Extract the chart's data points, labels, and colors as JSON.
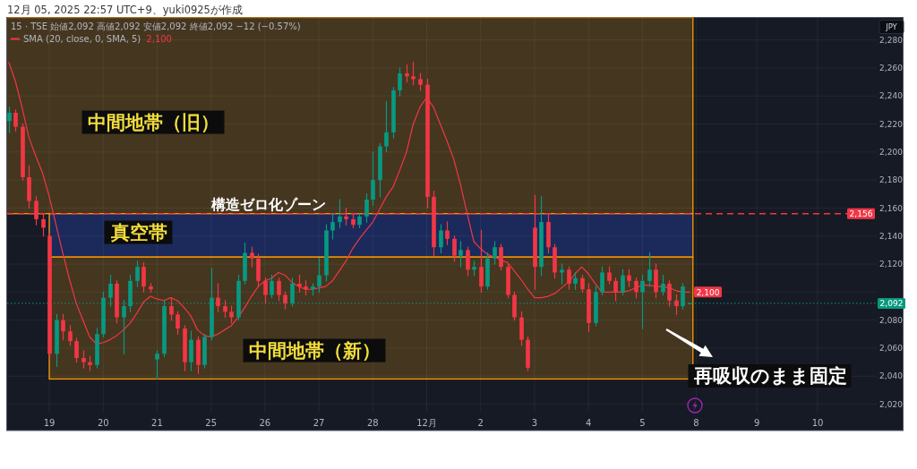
{
  "chart_data": {
    "type": "candlestick",
    "title": "15 · TSE 始値2,092 高値2,092 安値2,092 終値2,092 −12 (−0.57%)",
    "ylabel": "JPY",
    "annotations": [
      "12月 05, 2025 22:57 UTC+9、yuki0925が作成",
      "再吸収のまま固定",
      {
        "text": "構造ゼロ化ゾーン",
        "y": 2156
      }
    ],
    "categories": [
      null,
      null,
      null,
      null,
      null,
      null,
      "19",
      null,
      null,
      null,
      null,
      null,
      null,
      null,
      "20",
      null,
      null,
      null,
      null,
      null,
      null,
      null,
      "21",
      null,
      null,
      null,
      null,
      null,
      null,
      null,
      "25",
      null,
      null,
      null,
      null,
      null,
      null,
      null,
      "26",
      null,
      null,
      null,
      null,
      null,
      null,
      null,
      "27",
      null,
      null,
      null,
      null,
      null,
      null,
      null,
      "28",
      null,
      null,
      null,
      null,
      null,
      null,
      null,
      "12月",
      null,
      null,
      null,
      null,
      null,
      null,
      null,
      "2",
      null,
      null,
      null,
      null,
      null,
      null,
      null,
      "3",
      null,
      null,
      null,
      null,
      null,
      null,
      null,
      "4",
      null,
      null,
      null,
      null,
      null,
      null,
      null,
      "5",
      null,
      null,
      null,
      null,
      null,
      null,
      null,
      "8",
      null,
      null,
      null,
      null,
      null,
      null,
      null,
      null,
      "9",
      null,
      null,
      null,
      null,
      null,
      null,
      null,
      null,
      "10",
      null,
      null,
      null,
      null,
      null,
      null,
      null,
      null
    ],
    "ohlc": [
      [
        2222,
        2232,
        2214,
        2228
      ],
      [
        2228,
        2230,
        2215,
        2218
      ],
      [
        2218,
        2220,
        2180,
        2182
      ],
      [
        2182,
        2190,
        2160,
        2165
      ],
      [
        2165,
        2168,
        2148,
        2152
      ],
      [
        2152,
        2156,
        2140,
        2146
      ],
      [
        2140,
        2142,
        2052,
        2056
      ],
      [
        2056,
        2084,
        2047,
        2080
      ],
      [
        2080,
        2084,
        2066,
        2072
      ],
      [
        2072,
        2076,
        2062,
        2065
      ],
      [
        2065,
        2067,
        2050,
        2053
      ],
      [
        2053,
        2058,
        2046,
        2050
      ],
      [
        2050,
        2054,
        2044,
        2048
      ],
      [
        2048,
        2074,
        2046,
        2070
      ],
      [
        2070,
        2100,
        2068,
        2096
      ],
      [
        2096,
        2112,
        2090,
        2106
      ],
      [
        2106,
        2108,
        2078,
        2082
      ],
      [
        2082,
        2094,
        2056,
        2090
      ],
      [
        2090,
        2112,
        2086,
        2108
      ],
      [
        2108,
        2122,
        2104,
        2118
      ],
      [
        2118,
        2121,
        2100,
        2104
      ],
      [
        2104,
        2106,
        2100,
        2102
      ],
      [
        2052,
        2058,
        2038,
        2056
      ],
      [
        2056,
        2094,
        2054,
        2090
      ],
      [
        2090,
        2096,
        2080,
        2084
      ],
      [
        2084,
        2086,
        2070,
        2074
      ],
      [
        2074,
        2076,
        2044,
        2050
      ],
      [
        2050,
        2072,
        2044,
        2066
      ],
      [
        2066,
        2068,
        2042,
        2048
      ],
      [
        2048,
        2070,
        2046,
        2068
      ],
      [
        2068,
        2117,
        2066,
        2096
      ],
      [
        2096,
        2106,
        2086,
        2090
      ],
      [
        2090,
        2094,
        2082,
        2086
      ],
      [
        2086,
        2090,
        2078,
        2082
      ],
      [
        2082,
        2112,
        2080,
        2108
      ],
      [
        2108,
        2135,
        2106,
        2128
      ],
      [
        2128,
        2132,
        2118,
        2124
      ],
      [
        2124,
        2127,
        2104,
        2108
      ],
      [
        2108,
        2110,
        2092,
        2098
      ],
      [
        2098,
        2112,
        2096,
        2108
      ],
      [
        2108,
        2110,
        2094,
        2098
      ],
      [
        2098,
        2100,
        2088,
        2092
      ],
      [
        2092,
        2110,
        2090,
        2106
      ],
      [
        2106,
        2112,
        2100,
        2104
      ],
      [
        2104,
        2108,
        2098,
        2102
      ],
      [
        2102,
        2106,
        2098,
        2104
      ],
      [
        2104,
        2124,
        2100,
        2112
      ],
      [
        2112,
        2148,
        2108,
        2144
      ],
      [
        2144,
        2156,
        2138,
        2150
      ],
      [
        2150,
        2166,
        2146,
        2154
      ],
      [
        2154,
        2160,
        2148,
        2152
      ],
      [
        2152,
        2156,
        2146,
        2148
      ],
      [
        2148,
        2156,
        2146,
        2154
      ],
      [
        2154,
        2170,
        2150,
        2166
      ],
      [
        2166,
        2200,
        2162,
        2180
      ],
      [
        2180,
        2206,
        2168,
        2204
      ],
      [
        2204,
        2236,
        2200,
        2214
      ],
      [
        2214,
        2246,
        2210,
        2244
      ],
      [
        2244,
        2260,
        2240,
        2256
      ],
      [
        2256,
        2262,
        2250,
        2254
      ],
      [
        2254,
        2264,
        2248,
        2252
      ],
      [
        2252,
        2256,
        2244,
        2248
      ],
      [
        2248,
        2252,
        2160,
        2168
      ],
      [
        2168,
        2172,
        2126,
        2132
      ],
      [
        2132,
        2148,
        2128,
        2144
      ],
      [
        2144,
        2150,
        2134,
        2138
      ],
      [
        2138,
        2140,
        2122,
        2126
      ],
      [
        2126,
        2136,
        2118,
        2130
      ],
      [
        2130,
        2132,
        2112,
        2116
      ],
      [
        2116,
        2122,
        2112,
        2118
      ],
      [
        2118,
        2144,
        2100,
        2104
      ],
      [
        2104,
        2128,
        2102,
        2124
      ],
      [
        2124,
        2136,
        2120,
        2132
      ],
      [
        2132,
        2134,
        2116,
        2118
      ],
      [
        2118,
        2120,
        2096,
        2098
      ],
      [
        2098,
        2100,
        2080,
        2082
      ],
      [
        2082,
        2086,
        2062,
        2066
      ],
      [
        2066,
        2068,
        2044,
        2046
      ],
      [
        2146,
        2169,
        2102,
        2118
      ],
      [
        2118,
        2168,
        2112,
        2150
      ],
      [
        2150,
        2156,
        2128,
        2132
      ],
      [
        2132,
        2134,
        2110,
        2114
      ],
      [
        2114,
        2120,
        2106,
        2116
      ],
      [
        2116,
        2118,
        2102,
        2106
      ],
      [
        2106,
        2114,
        2102,
        2110
      ],
      [
        2110,
        2112,
        2100,
        2102
      ],
      [
        2102,
        2106,
        2072,
        2078
      ],
      [
        2078,
        2104,
        2076,
        2100
      ],
      [
        2100,
        2118,
        2098,
        2114
      ],
      [
        2114,
        2118,
        2106,
        2108
      ],
      [
        2108,
        2110,
        2094,
        2100
      ],
      [
        2100,
        2116,
        2098,
        2112
      ],
      [
        2112,
        2116,
        2104,
        2108
      ],
      [
        2108,
        2110,
        2096,
        2100
      ],
      [
        2100,
        2112,
        2074,
        2108
      ],
      [
        2108,
        2128,
        2104,
        2116
      ],
      [
        2116,
        2120,
        2096,
        2100
      ],
      [
        2100,
        2112,
        2098,
        2106
      ],
      [
        2106,
        2108,
        2090,
        2094
      ],
      [
        2094,
        2098,
        2084,
        2090
      ],
      [
        2090,
        2106,
        2088,
        2104
      ],
      [
        2092,
        2092,
        2092,
        2092
      ],
      null,
      null,
      null,
      null,
      null,
      null,
      null,
      null,
      null,
      null,
      null,
      null,
      null,
      null,
      null,
      null,
      null,
      null,
      null,
      null,
      null,
      null,
      null,
      null,
      null,
      null,
      null
    ],
    "series": [
      {
        "name": "SMA (20, close, 0, SMA, 5)",
        "type": "line",
        "color": "#f23645",
        "values": [
          2264,
          2250,
          2231,
          2210,
          2197,
          2185,
          2168,
          2148,
          2128,
          2109,
          2092,
          2080,
          2068,
          2063,
          2064,
          2066,
          2069,
          2073,
          2078,
          2085,
          2093,
          2097,
          2095,
          2094,
          2096,
          2094,
          2089,
          2083,
          2073,
          2069,
          2068,
          2070,
          2073,
          2076,
          2082,
          2089,
          2097,
          2104,
          2108,
          2110,
          2114,
          2112,
          2107,
          2104,
          2102,
          2102,
          2103,
          2104,
          2108,
          2115,
          2122,
          2131,
          2138,
          2144,
          2150,
          2159,
          2168,
          2175,
          2187,
          2200,
          2220,
          2232,
          2239,
          2232,
          2220,
          2208,
          2195,
          2177,
          2156,
          2136,
          2131,
          2127,
          2125,
          2123,
          2121,
          2115,
          2109,
          2102,
          2096,
          2096,
          2097,
          2099,
          2103,
          2107,
          2113,
          2118,
          2113,
          2106,
          2100,
          2100,
          2100,
          2100,
          2101,
          2103,
          2105,
          2105,
          2104,
          2104,
          2103,
          2101,
          2100,
          2100,
          null,
          null,
          null,
          null,
          null,
          null,
          null,
          null,
          null,
          null,
          null,
          null,
          null,
          null,
          null,
          null,
          null,
          null,
          null,
          null,
          null,
          null,
          null,
          null,
          null,
          null,
          null
        ],
        "value_labels": [
          null,
          null,
          null,
          null,
          null,
          null,
          null,
          null,
          null,
          null,
          null,
          null,
          null,
          null,
          null,
          null,
          null,
          null,
          null,
          null,
          null,
          null,
          null,
          null,
          null,
          null,
          null,
          null,
          null,
          null,
          null,
          null,
          null,
          null,
          null,
          null,
          null,
          null,
          null,
          null,
          null,
          null,
          null,
          null,
          null,
          null,
          null,
          null,
          null,
          null,
          null,
          null,
          null,
          null,
          null,
          null,
          null,
          null,
          null,
          null,
          null,
          null,
          null,
          null,
          null,
          null,
          null,
          null,
          null,
          null,
          null,
          null,
          null,
          null,
          null,
          null,
          null,
          null,
          null,
          null,
          null,
          null,
          null,
          null,
          null,
          null,
          null,
          null,
          null,
          null,
          null,
          null,
          null,
          null,
          null,
          null,
          null,
          null,
          null,
          null,
          null,
          "2,100",
          null,
          null,
          null,
          null,
          null,
          null,
          null,
          null,
          null,
          null,
          null,
          null,
          null,
          null,
          null,
          null,
          null,
          null,
          null,
          null,
          null,
          null,
          null,
          null,
          null,
          null,
          null
        ]
      }
    ],
    "ylim": [
      2014,
      2296
    ],
    "yticks": [
      {
        "value": 2020,
        "label": "2,020"
      },
      {
        "value": 2040,
        "label": "2,040"
      },
      {
        "value": 2060,
        "label": "2,060"
      },
      {
        "value": 2080,
        "label": "2,080"
      },
      {
        "value": 2100,
        "label": null
      },
      {
        "value": 2120,
        "label": "2,120"
      },
      {
        "value": 2140,
        "label": "2,140"
      },
      {
        "value": 2160,
        "label": "2,160"
      },
      {
        "value": 2180,
        "label": "2,180"
      },
      {
        "value": 2200,
        "label": "2,200"
      },
      {
        "value": 2220,
        "label": "2,220"
      },
      {
        "value": 2240,
        "label": "2,240"
      },
      {
        "value": 2260,
        "label": "2,260"
      },
      {
        "value": 2280,
        "label": "2,280"
      }
    ],
    "ref_lines": [
      {
        "axis": "y",
        "value": 2156,
        "label": "2,156",
        "color": "#f23645",
        "line_style": "dashed"
      },
      {
        "axis": "y",
        "value": 2092,
        "label": "2,092",
        "color": "#089981",
        "line_style": "dotted"
      }
    ],
    "bands": [
      {
        "axis": "y",
        "from": 2156,
        "to": 2296,
        "label": "中間地帯（旧）",
        "color": "#45361f"
      },
      {
        "axis": "y",
        "from": 2125,
        "to": 2156,
        "label": "真空帯",
        "color": "#1b2a5a"
      },
      {
        "axis": "y",
        "from": 2038,
        "to": 2125,
        "label": "中間地帯（新）",
        "color": "#45361f"
      }
    ],
    "grid": true,
    "legend": "top left"
  }
}
